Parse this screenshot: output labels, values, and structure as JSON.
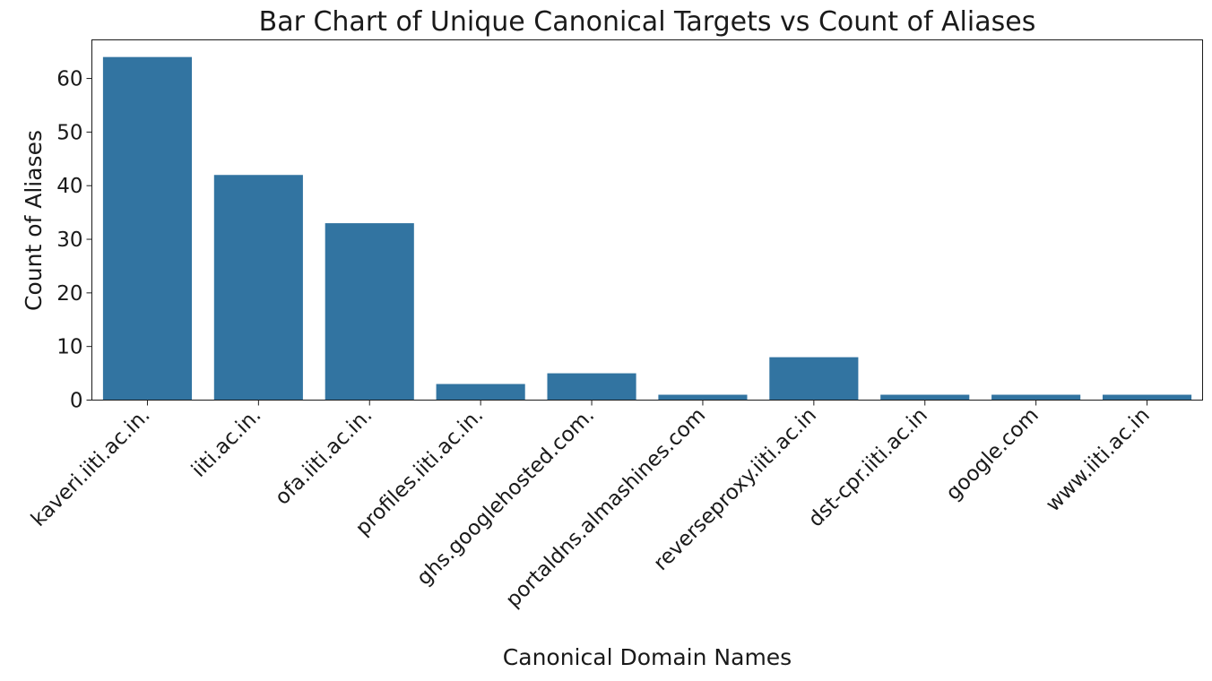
{
  "chart_data": {
    "type": "bar",
    "title": "Bar Chart of Unique Canonical Targets vs Count of Aliases",
    "xlabel": "Canonical Domain Names",
    "ylabel": "Count of Aliases",
    "categories": [
      "kaveri.iiti.ac.in.",
      "iiti.ac.in.",
      "ofa.iiti.ac.in.",
      "profiles.iiti.ac.in.",
      "ghs.googlehosted.com.",
      "portaldns.almashines.com",
      "reverseproxy.iiti.ac.in",
      "dst-cpr.iiti.ac.in",
      "google.com",
      "www.iiti.ac.in"
    ],
    "values": [
      64,
      42,
      33,
      3,
      5,
      1,
      8,
      1,
      1,
      1
    ],
    "ylim": [
      0,
      67.2
    ],
    "yticks": [
      0,
      10,
      20,
      30,
      40,
      50,
      60
    ],
    "bar_color": "#3274a1",
    "grid": false,
    "legend": "none"
  }
}
